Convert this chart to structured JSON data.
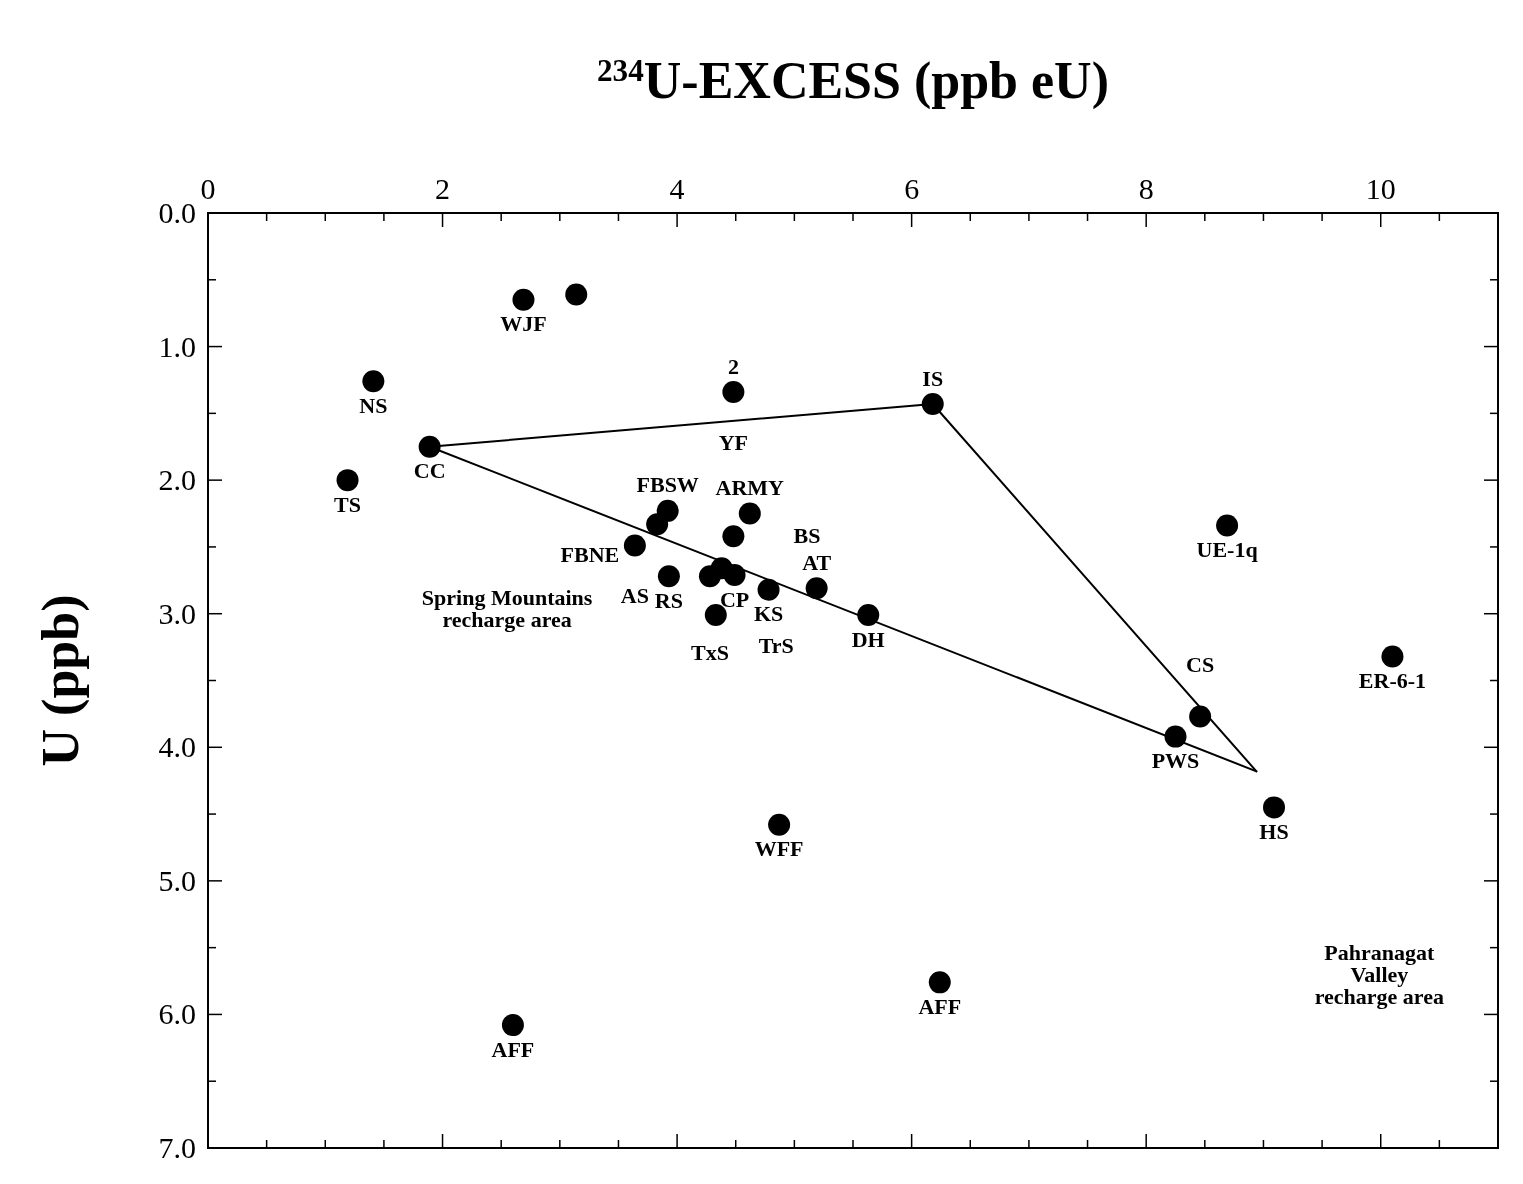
{
  "chart_data": {
    "type": "scatter",
    "xlabel": "$^{234}$U-EXCESS (ppb eU)",
    "ylabel": "U (ppb)",
    "xlim": [
      0,
      11
    ],
    "ylim": [
      7,
      0
    ],
    "xticks": [
      0,
      {
        "value": 0.5,
        "label": null
      },
      2,
      {
        "value": 1,
        "label": null
      },
      {
        "value": 1.5,
        "label": null
      },
      {
        "value": 2.5,
        "label": null
      },
      {
        "value": 3,
        "label": null
      },
      {
        "value": 3.5,
        "label": null
      },
      4,
      {
        "value": 4.5,
        "label": null
      },
      {
        "value": 5,
        "label": null
      },
      {
        "value": 5.5,
        "label": null
      },
      6,
      {
        "value": 6.5,
        "label": null
      },
      {
        "value": 7,
        "label": null
      },
      {
        "value": 7.5,
        "label": null
      },
      8,
      {
        "value": 8.5,
        "label": null
      },
      {
        "value": 9,
        "label": null
      },
      {
        "value": 9.5,
        "label": null
      },
      10,
      {
        "value": 10.5,
        "label": null
      }
    ],
    "yticks": [
      {
        "value": 0,
        "label": "0.0"
      },
      {
        "value": 0.5,
        "label": null
      },
      {
        "value": 1,
        "label": "1.0"
      },
      {
        "value": 1.5,
        "label": null
      },
      {
        "value": 2,
        "label": "2.0"
      },
      {
        "value": 2.5,
        "label": null
      },
      {
        "value": 3,
        "label": "3.0"
      },
      {
        "value": 3.5,
        "label": null
      },
      {
        "value": 4,
        "label": "4.0"
      },
      {
        "value": 4.5,
        "label": null
      },
      {
        "value": 5,
        "label": "5.0"
      },
      {
        "value": 5.5,
        "label": null
      },
      {
        "value": 6,
        "label": "6.0"
      },
      {
        "value": 6.5,
        "label": null
      },
      {
        "value": 7,
        "label": "7.0"
      }
    ],
    "grid": false,
    "marker": "circle",
    "series": [
      {
        "color": "#000000",
        "x": [
          2.69,
          3.14,
          1.41,
          1.19,
          1.89,
          4.48,
          6.18,
          3.92,
          3.83,
          3.64,
          4.62,
          4.48,
          4.38,
          4.49,
          4.28,
          3.93,
          4.78,
          5.19,
          5.63,
          4.33,
          8.46,
          8.25,
          9.09,
          4.87,
          6.24,
          2.6
        ],
        "values": [
          0.65,
          0.61,
          1.26,
          2.0,
          1.75,
          1.34,
          1.43,
          2.23,
          2.33,
          2.49,
          2.25,
          2.42,
          2.66,
          2.71,
          2.72,
          2.72,
          2.82,
          2.81,
          3.01,
          3.01,
          3.77,
          3.92,
          4.45,
          4.58,
          5.76,
          6.08
        ]
      },
      {
        "color": "#000000",
        "x": [
          8.69,
          10.1
        ],
        "values": [
          2.34,
          3.32
        ]
      },
      {
        "type": "line",
        "color": "#000000",
        "marker": "none",
        "x": [
          1.89,
          6.18,
          8.94
        ],
        "values": [
          1.75,
          1.43,
          4.18
        ]
      },
      {
        "type": "line",
        "color": "#000000",
        "marker": "none",
        "x": [
          1.89,
          8.94
        ],
        "values": [
          1.75,
          4.18
        ]
      }
    ],
    "annotations": [
      {
        "text": "WJF",
        "x": 2.69,
        "y": 0.65
      },
      {
        "text": "2",
        "x": 4.48,
        "y": 1.34
      },
      {
        "text": "YF",
        "x": 4.48,
        "y": 1.34
      },
      {
        "text": "IS",
        "x": 6.18,
        "y": 1.43
      },
      {
        "text": "NS",
        "x": 1.41,
        "y": 1.26
      },
      {
        "text": "CC",
        "x": 1.89,
        "y": 1.75
      },
      {
        "text": "TS",
        "x": 1.19,
        "y": 2.0
      },
      {
        "text": "FBSW",
        "x": 3.92,
        "y": 2.23
      },
      {
        "text": "FBNE",
        "x": 3.83,
        "y": 2.33
      },
      {
        "text": "ARMY",
        "x": 4.62,
        "y": 2.25
      },
      {
        "text": "BS",
        "x": 4.48,
        "y": 2.42
      },
      {
        "text": "AS",
        "x": 3.64,
        "y": 2.49
      },
      {
        "text": "TxS",
        "x": 4.28,
        "y": 2.72
      },
      {
        "text": "RS",
        "x": 3.93,
        "y": 2.72
      },
      {
        "text": "TrS",
        "x": 4.33,
        "y": 3.01
      },
      {
        "text": "CP",
        "x": 4.49,
        "y": 2.71
      },
      {
        "text": "KS",
        "x": 4.78,
        "y": 2.82
      },
      {
        "text": "AT",
        "x": 5.19,
        "y": 2.81
      },
      {
        "text": "DH",
        "x": 5.63,
        "y": 3.01
      },
      {
        "text": "UE-1q",
        "x": 8.69,
        "y": 2.34
      },
      {
        "text": "ER-6-1",
        "x": 10.1,
        "y": 3.32
      },
      {
        "text": "CS",
        "x": 8.46,
        "y": 3.77
      },
      {
        "text": "PWS",
        "x": 8.25,
        "y": 3.92
      },
      {
        "text": "HS",
        "x": 9.09,
        "y": 4.45
      },
      {
        "text": "WFF",
        "x": 4.87,
        "y": 4.58
      },
      {
        "text": "AFF",
        "x": 6.24,
        "y": 5.76
      },
      {
        "text": "AFF",
        "x": 2.6,
        "y": 6.08
      },
      "Spring Mountains\nrecharge area",
      "Pahranagat\nValley\nrecharge area"
    ]
  }
}
